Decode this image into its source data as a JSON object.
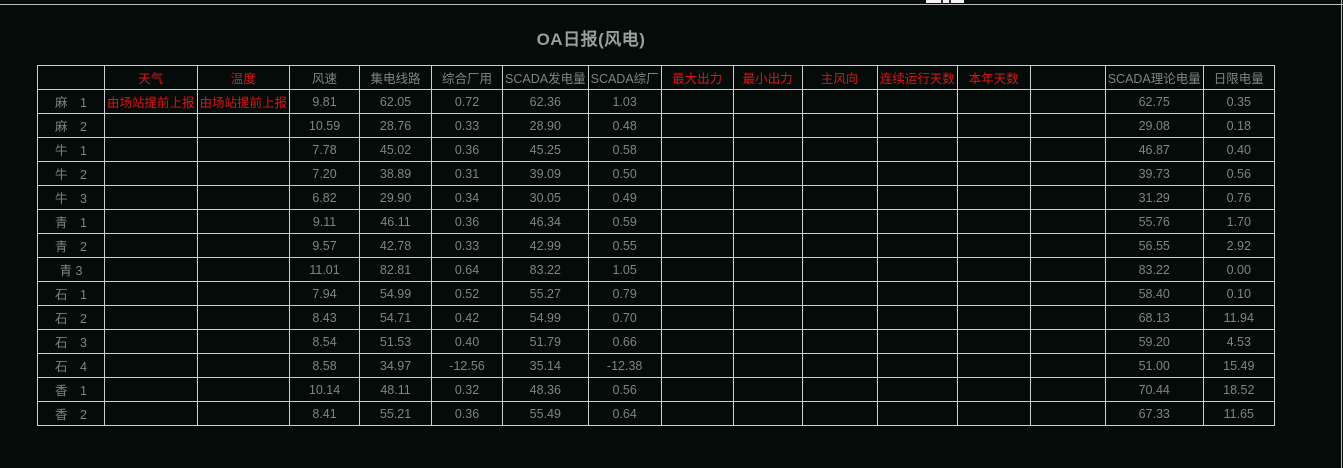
{
  "page": {
    "title": "OA日报(风电)",
    "colors": {
      "background": "#050b08",
      "border": "#cbd0cd",
      "text_gray": "#7e8481",
      "text_red": "#e01414",
      "title_gray": "#9a9f9c"
    }
  },
  "table": {
    "columns": [
      {
        "key": "station",
        "label": "",
        "red": false
      },
      {
        "key": "weather",
        "label": "天气",
        "red": true
      },
      {
        "key": "temperature",
        "label": "温度",
        "red": true
      },
      {
        "key": "wind-speed",
        "label": "风速",
        "red": false
      },
      {
        "key": "collector-line",
        "label": "集电线路",
        "red": false
      },
      {
        "key": "plant-use",
        "label": "综合厂用",
        "red": false
      },
      {
        "key": "scada-gen",
        "label": "SCADA发电量",
        "red": false
      },
      {
        "key": "scada-plant",
        "label": "SCADA综厂",
        "red": false
      },
      {
        "key": "max-output",
        "label": "最大出力",
        "red": true
      },
      {
        "key": "min-output",
        "label": "最小出力",
        "red": true
      },
      {
        "key": "wind-dir",
        "label": "主风向",
        "red": true
      },
      {
        "key": "run-days",
        "label": "连续运行天数",
        "red": true
      },
      {
        "key": "year-days",
        "label": "本年天数",
        "red": true
      },
      {
        "key": "blank",
        "label": "",
        "red": false
      },
      {
        "key": "scada-theory",
        "label": "SCADA理论电量",
        "red": false
      },
      {
        "key": "day-limit",
        "label": "日限电量",
        "red": false
      }
    ],
    "rows": [
      {
        "label": "麻　1",
        "red_cells": [
          0,
          1
        ],
        "cells": [
          "由场站提前上报",
          "由场站提前上报",
          "9.81",
          "62.05",
          "0.72",
          "62.36",
          "1.03",
          "",
          "",
          "",
          "",
          "",
          "",
          "62.75",
          "0.35"
        ]
      },
      {
        "label": "麻　2",
        "red_cells": [],
        "cells": [
          "",
          "",
          "10.59",
          "28.76",
          "0.33",
          "28.90",
          "0.48",
          "",
          "",
          "",
          "",
          "",
          "",
          "29.08",
          "0.18"
        ]
      },
      {
        "label": "牛　1",
        "red_cells": [],
        "cells": [
          "",
          "",
          "7.78",
          "45.02",
          "0.36",
          "45.25",
          "0.58",
          "",
          "",
          "",
          "",
          "",
          "",
          "46.87",
          "0.40"
        ]
      },
      {
        "label": "牛　2",
        "red_cells": [],
        "cells": [
          "",
          "",
          "7.20",
          "38.89",
          "0.31",
          "39.09",
          "0.50",
          "",
          "",
          "",
          "",
          "",
          "",
          "39.73",
          "0.56"
        ]
      },
      {
        "label": "牛　3",
        "red_cells": [],
        "cells": [
          "",
          "",
          "6.82",
          "29.90",
          "0.34",
          "30.05",
          "0.49",
          "",
          "",
          "",
          "",
          "",
          "",
          "31.29",
          "0.76"
        ]
      },
      {
        "label": "青　1",
        "red_cells": [],
        "cells": [
          "",
          "",
          "9.11",
          "46.11",
          "0.36",
          "46.34",
          "0.59",
          "",
          "",
          "",
          "",
          "",
          "",
          "55.76",
          "1.70"
        ]
      },
      {
        "label": "青　2",
        "red_cells": [],
        "cells": [
          "",
          "",
          "9.57",
          "42.78",
          "0.33",
          "42.99",
          "0.55",
          "",
          "",
          "",
          "",
          "",
          "",
          "56.55",
          "2.92"
        ]
      },
      {
        "label": "青 3",
        "red_cells": [],
        "cells": [
          "",
          "",
          "11.01",
          "82.81",
          "0.64",
          "83.22",
          "1.05",
          "",
          "",
          "",
          "",
          "",
          "",
          "83.22",
          "0.00"
        ]
      },
      {
        "label": "石　1",
        "red_cells": [],
        "cells": [
          "",
          "",
          "7.94",
          "54.99",
          "0.52",
          "55.27",
          "0.79",
          "",
          "",
          "",
          "",
          "",
          "",
          "58.40",
          "0.10"
        ]
      },
      {
        "label": "石　2",
        "red_cells": [],
        "cells": [
          "",
          "",
          "8.43",
          "54.71",
          "0.42",
          "54.99",
          "0.70",
          "",
          "",
          "",
          "",
          "",
          "",
          "68.13",
          "11.94"
        ]
      },
      {
        "label": "石　3",
        "red_cells": [],
        "cells": [
          "",
          "",
          "8.54",
          "51.53",
          "0.40",
          "51.79",
          "0.66",
          "",
          "",
          "",
          "",
          "",
          "",
          "59.20",
          "4.53"
        ]
      },
      {
        "label": "石　4",
        "red_cells": [],
        "cells": [
          "",
          "",
          "8.58",
          "34.97",
          "-12.56",
          "35.14",
          "-12.38",
          "",
          "",
          "",
          "",
          "",
          "",
          "51.00",
          "15.49"
        ]
      },
      {
        "label": "香　1",
        "red_cells": [],
        "cells": [
          "",
          "",
          "10.14",
          "48.11",
          "0.32",
          "48.36",
          "0.56",
          "",
          "",
          "",
          "",
          "",
          "",
          "70.44",
          "18.52"
        ]
      },
      {
        "label": "香　2",
        "red_cells": [],
        "cells": [
          "",
          "",
          "8.41",
          "55.21",
          "0.36",
          "55.49",
          "0.64",
          "",
          "",
          "",
          "",
          "",
          "",
          "67.33",
          "11.65"
        ]
      }
    ]
  }
}
